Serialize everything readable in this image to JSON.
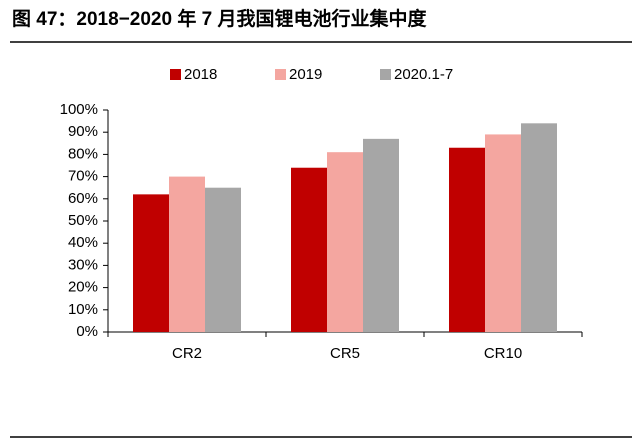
{
  "chart_data": {
    "type": "bar",
    "title": "图 47：2018−2020 年 7 月我国锂电池行业集中度",
    "categories": [
      "CR2",
      "CR5",
      "CR10"
    ],
    "series": [
      {
        "name": "2018",
        "color": "#c00000",
        "values": [
          62,
          74,
          83
        ]
      },
      {
        "name": "2019",
        "color": "#f4a6a0",
        "values": [
          70,
          81,
          89
        ]
      },
      {
        "name": "2020.1-7",
        "color": "#a6a6a6",
        "values": [
          65,
          87,
          94
        ]
      }
    ],
    "ylim": [
      0,
      100
    ],
    "yticks": [
      {
        "value": 0,
        "label": "0%"
      },
      {
        "value": 10,
        "label": "10%"
      },
      {
        "value": 20,
        "label": "20%"
      },
      {
        "value": 30,
        "label": "30%"
      },
      {
        "value": 40,
        "label": "40%"
      },
      {
        "value": 50,
        "label": "50%"
      },
      {
        "value": 60,
        "label": "60%"
      },
      {
        "value": 70,
        "label": "70%"
      },
      {
        "value": 80,
        "label": "80%"
      },
      {
        "value": 90,
        "label": "90%"
      },
      {
        "value": 100,
        "label": "100%"
      }
    ],
    "legend": "top"
  }
}
